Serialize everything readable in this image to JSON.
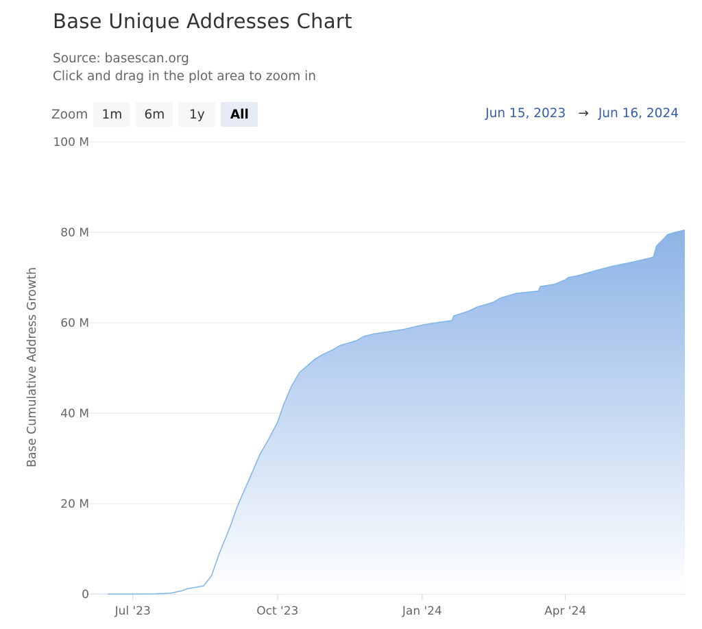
{
  "header": {
    "title": "Base Unique Addresses Chart",
    "source": "Source: basescan.org",
    "hint": "Click and drag in the plot area to zoom in"
  },
  "zoom": {
    "label": "Zoom",
    "buttons": [
      "1m",
      "6m",
      "1y",
      "All"
    ],
    "selected": "All"
  },
  "range": {
    "from": "Jun 15, 2023",
    "arrow": "→",
    "to": "Jun 16, 2024"
  },
  "colors": {
    "line": "#7cb5ec",
    "fill_top": "#8db3e6",
    "fill_bottom": "#ffffff",
    "grid": "#e6e6e6",
    "accent": "#335cad"
  },
  "chart_data": {
    "type": "area",
    "title": "Base Unique Addresses Chart",
    "ylabel": "Base Cumulative Address Growth",
    "ylim": [
      0,
      100000000
    ],
    "yticks": [
      0,
      20000000,
      40000000,
      60000000,
      80000000,
      100000000
    ],
    "ytick_labels": [
      "0",
      "20 M",
      "40 M",
      "60 M",
      "80 M",
      "100 M"
    ],
    "xlim": [
      "2023-06-15",
      "2024-06-16"
    ],
    "xticks": [
      "2023-07-01",
      "2023-10-01",
      "2024-01-01",
      "2024-04-01"
    ],
    "xtick_labels": [
      "Jul '23",
      "Oct '23",
      "Jan '24",
      "Apr '24"
    ],
    "grid": true,
    "series": [
      {
        "x": [
          "2023-06-15",
          "2023-07-01",
          "2023-07-15",
          "2023-07-25",
          "2023-08-01",
          "2023-08-05",
          "2023-08-10",
          "2023-08-15",
          "2023-08-20",
          "2023-08-25",
          "2023-09-01",
          "2023-09-05",
          "2023-09-10",
          "2023-09-15",
          "2023-09-20",
          "2023-09-25",
          "2023-10-01",
          "2023-10-05",
          "2023-10-10",
          "2023-10-15",
          "2023-10-20",
          "2023-10-25",
          "2023-10-30",
          "2023-11-05",
          "2023-11-10",
          "2023-11-15",
          "2023-11-20",
          "2023-11-25",
          "2023-12-01",
          "2023-12-10",
          "2023-12-20",
          "2024-01-01",
          "2024-01-10",
          "2024-01-20",
          "2024-01-21",
          "2024-01-30",
          "2024-02-05",
          "2024-02-15",
          "2024-02-20",
          "2024-03-01",
          "2024-03-15",
          "2024-03-16",
          "2024-03-25",
          "2024-04-01",
          "2024-04-03",
          "2024-04-10",
          "2024-04-20",
          "2024-05-01",
          "2024-05-15",
          "2024-05-27",
          "2024-05-29",
          "2024-06-01",
          "2024-06-05",
          "2024-06-10",
          "2024-06-16"
        ],
        "values": [
          0,
          0,
          50000,
          200000,
          700000,
          1200000,
          1500000,
          1800000,
          4000000,
          9000000,
          15000000,
          19000000,
          23000000,
          27000000,
          31000000,
          34000000,
          38000000,
          42000000,
          46000000,
          49000000,
          50500000,
          52000000,
          53000000,
          54000000,
          55000000,
          55500000,
          56000000,
          57000000,
          57500000,
          58000000,
          58500000,
          59500000,
          60000000,
          60500000,
          61500000,
          62500000,
          63500000,
          64500000,
          65500000,
          66500000,
          67000000,
          68000000,
          68500000,
          69500000,
          70000000,
          70500000,
          71500000,
          72500000,
          73500000,
          74500000,
          77000000,
          78000000,
          79500000,
          80000000,
          80500000
        ]
      }
    ]
  }
}
